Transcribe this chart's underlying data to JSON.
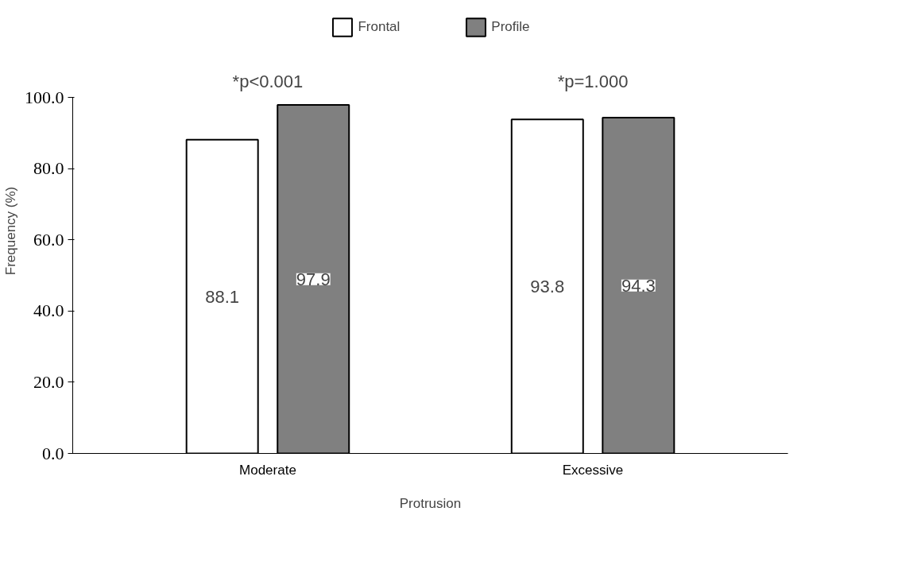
{
  "chart_data": {
    "type": "bar",
    "categories": [
      "Moderate",
      "Excessive"
    ],
    "series": [
      {
        "name": "Frontal",
        "color": "#ffffff",
        "values": [
          88.1,
          93.8
        ]
      },
      {
        "name": "Profile",
        "color": "#808080",
        "values": [
          97.9,
          94.3
        ]
      }
    ],
    "xlabel": "Protrusion",
    "ylabel": "Frequency (%)",
    "ylim": [
      0,
      100
    ],
    "yticks": [
      {
        "value": 0,
        "label": "0.0"
      },
      {
        "value": 20,
        "label": "20.0"
      },
      {
        "value": 40,
        "label": "40.0"
      },
      {
        "value": 60,
        "label": "60.0"
      },
      {
        "value": 80,
        "label": "80.0"
      },
      {
        "value": 100,
        "label": "100.0"
      }
    ],
    "annotations": [
      "*p<0.001",
      "*p=1.000"
    ],
    "data_labels": true,
    "legend": "top",
    "grid": false
  }
}
